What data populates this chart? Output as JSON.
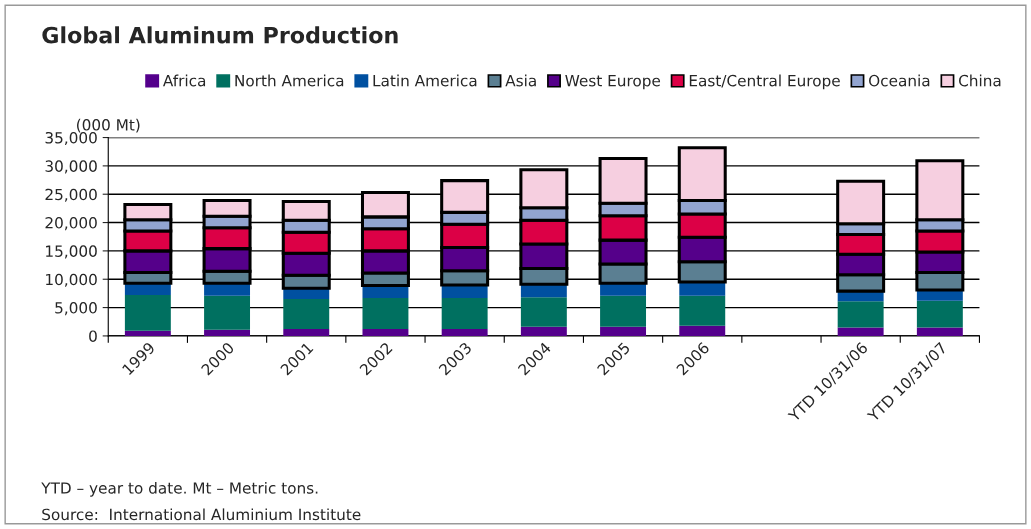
{
  "chart_data": {
    "type": "bar",
    "stacked": true,
    "title": "Global Aluminum Production",
    "ylabel": "(000 Mt)",
    "categories": [
      "1999",
      "2000",
      "2001",
      "2002",
      "2003",
      "2004",
      "2005",
      "2006",
      null,
      "YTD 10/31/06",
      "YTD 10/31/07"
    ],
    "series": [
      {
        "name": "Africa",
        "color": "#54008c",
        "values": [
          900,
          1100,
          1200,
          1200,
          1200,
          1600,
          1600,
          1800,
          null,
          1500,
          1500
        ]
      },
      {
        "name": "North America",
        "color": "#007060",
        "values": [
          6300,
          6000,
          5300,
          5500,
          5500,
          5200,
          5500,
          5300,
          null,
          4600,
          4700
        ]
      },
      {
        "name": "Latin America",
        "color": "#0050a0",
        "values": [
          2100,
          2200,
          1900,
          2200,
          2300,
          2300,
          2200,
          2400,
          null,
          1800,
          1900
        ]
      },
      {
        "name": "Asia",
        "color": "#5b7f92",
        "values": [
          1900,
          2100,
          2300,
          2200,
          2500,
          2800,
          3400,
          3600,
          null,
          2900,
          3100
        ]
      },
      {
        "name": "West Europe",
        "color": "#55008a",
        "values": [
          3800,
          4000,
          3900,
          3900,
          4100,
          4300,
          4200,
          4300,
          null,
          3600,
          3600
        ]
      },
      {
        "name": "East/Central Europe",
        "color": "#dc0046",
        "values": [
          3500,
          3700,
          3700,
          3900,
          4100,
          4200,
          4300,
          4100,
          null,
          3500,
          3700
        ]
      },
      {
        "name": "Oceania",
        "color": "#92a4d0",
        "values": [
          2000,
          2000,
          2100,
          2100,
          2100,
          2200,
          2200,
          2400,
          null,
          1900,
          2000
        ]
      },
      {
        "name": "China",
        "color": "#f6cfe0",
        "values": [
          2700,
          2800,
          3300,
          4300,
          5600,
          6700,
          7900,
          9300,
          null,
          7500,
          10400
        ]
      }
    ],
    "ylim": [
      0,
      35000
    ],
    "yticks": [
      {
        "value": 0,
        "label": "0"
      },
      {
        "value": 5000,
        "label": "5,000"
      },
      {
        "value": 10000,
        "label": "10,000"
      },
      {
        "value": 15000,
        "label": "15,000"
      },
      {
        "value": 20000,
        "label": "20,000"
      },
      {
        "value": 25000,
        "label": "25,000"
      },
      {
        "value": 30000,
        "label": "30,000"
      },
      {
        "value": 35000,
        "label": "35,000"
      }
    ],
    "grid": "y",
    "legend": "top",
    "annotations": [
      "YTD – year to date. Mt – Metric tons.",
      "Source:  International Aluminium Institute"
    ]
  }
}
